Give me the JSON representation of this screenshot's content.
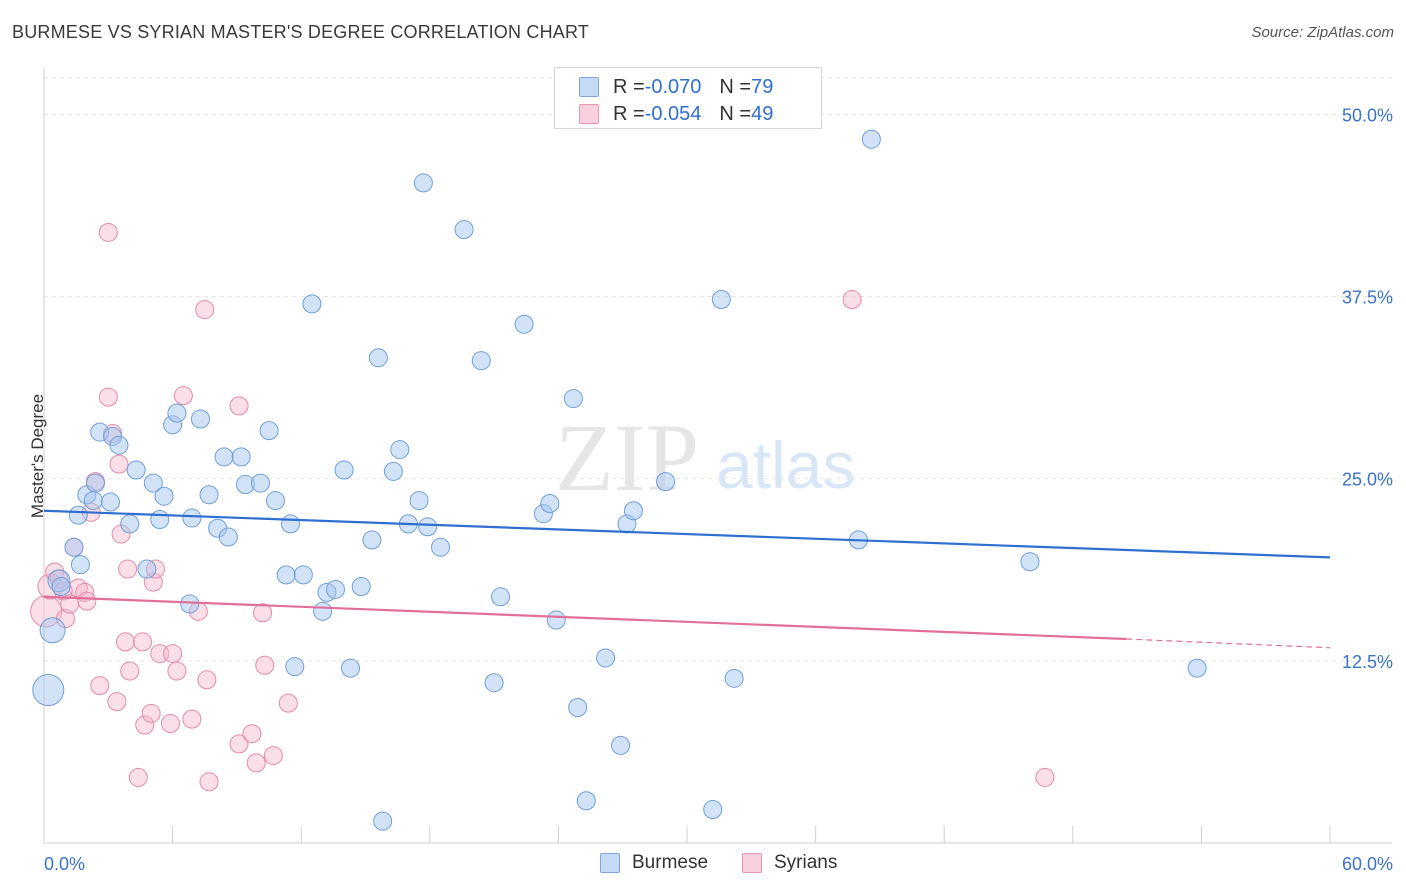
{
  "header": {
    "title": "BURMESE VS SYRIAN MASTER'S DEGREE CORRELATION CHART",
    "source": "Source: ZipAtlas.com"
  },
  "watermark": {
    "zip": "ZIP",
    "atlas": "atlas"
  },
  "legend": {
    "rows": [
      {
        "r_label": "R = ",
        "r_value": "-0.070",
        "n_label": "N = ",
        "n_value": "79",
        "color": "#a8c8f0"
      },
      {
        "r_label": "R = ",
        "r_value": "-0.054",
        "n_label": "N = ",
        "n_value": "49",
        "color": "#f5b8cb"
      }
    ]
  },
  "bottom_legend": {
    "burmese": "Burmese",
    "syrians": "Syrians"
  },
  "colors": {
    "burmese_fill": "#a8c8f0",
    "burmese_stroke": "#6f9fd8",
    "burmese_line": "#2f6fd0",
    "syrians_fill": "#f5b8cb",
    "syrians_stroke": "#e58aa8",
    "syrians_line": "#e0709a",
    "tick_label": "#3b73c8",
    "grid": "#e2e2e2"
  },
  "chart_data": {
    "type": "scatter",
    "title": "BURMESE VS SYRIAN MASTER'S DEGREE CORRELATION CHART",
    "xlabel": "",
    "ylabel": "Master's Degree",
    "xlim": [
      0,
      60
    ],
    "ylim": [
      0,
      52.5
    ],
    "x_tick_labels": [
      "0.0%",
      "60.0%"
    ],
    "y_ticks": [
      12.5,
      25.0,
      37.5,
      50.0
    ],
    "y_tick_labels": [
      "12.5%",
      "25.0%",
      "37.5%",
      "50.0%"
    ],
    "grid": true,
    "series": [
      {
        "name": "Burmese",
        "r": -0.07,
        "n": 79,
        "trend": {
          "x": [
            0,
            60
          ],
          "y": [
            22.8,
            19.6
          ]
        },
        "points": [
          [
            0.2,
            10.5,
            3
          ],
          [
            0.4,
            14.6,
            2
          ],
          [
            0.7,
            18.0,
            1.5
          ],
          [
            0.8,
            17.6,
            1
          ],
          [
            1.4,
            20.3,
            1
          ],
          [
            1.6,
            22.5,
            1
          ],
          [
            1.7,
            19.1,
            1
          ],
          [
            2.0,
            23.9,
            1
          ],
          [
            2.4,
            24.7,
            1
          ],
          [
            2.6,
            28.2,
            1
          ],
          [
            2.3,
            23.5,
            1
          ],
          [
            3.1,
            23.4,
            1
          ],
          [
            3.2,
            27.9,
            1
          ],
          [
            3.5,
            27.3,
            1
          ],
          [
            4.0,
            21.9,
            1
          ],
          [
            4.3,
            25.6,
            1
          ],
          [
            4.8,
            18.8,
            1
          ],
          [
            5.1,
            24.7,
            1
          ],
          [
            5.4,
            22.2,
            1
          ],
          [
            5.6,
            23.8,
            1
          ],
          [
            6.0,
            28.7,
            1
          ],
          [
            6.2,
            29.5,
            1
          ],
          [
            6.8,
            16.4,
            1
          ],
          [
            6.9,
            22.3,
            1
          ],
          [
            7.3,
            29.1,
            1
          ],
          [
            7.7,
            23.9,
            1
          ],
          [
            8.1,
            21.6,
            1
          ],
          [
            8.4,
            26.5,
            1
          ],
          [
            8.6,
            21.0,
            1
          ],
          [
            9.2,
            26.5,
            1
          ],
          [
            9.4,
            24.6,
            1
          ],
          [
            10.1,
            24.7,
            1
          ],
          [
            10.5,
            28.3,
            1
          ],
          [
            10.8,
            23.5,
            1
          ],
          [
            11.3,
            18.4,
            1
          ],
          [
            11.5,
            21.9,
            1
          ],
          [
            11.7,
            12.1,
            1
          ],
          [
            12.1,
            18.4,
            1
          ],
          [
            12.5,
            37.0,
            1
          ],
          [
            13.0,
            15.9,
            1
          ],
          [
            13.2,
            17.2,
            1
          ],
          [
            13.6,
            17.4,
            1
          ],
          [
            14.0,
            25.6,
            1
          ],
          [
            14.3,
            12.0,
            1
          ],
          [
            14.8,
            17.6,
            1
          ],
          [
            15.3,
            20.8,
            1
          ],
          [
            15.6,
            33.3,
            1
          ],
          [
            15.8,
            1.5,
            1
          ],
          [
            16.3,
            25.5,
            1
          ],
          [
            16.6,
            27.0,
            1
          ],
          [
            17.0,
            21.9,
            1
          ],
          [
            17.5,
            23.5,
            1
          ],
          [
            17.7,
            45.3,
            1
          ],
          [
            17.9,
            21.7,
            1
          ],
          [
            18.5,
            20.3,
            1
          ],
          [
            19.6,
            42.1,
            1
          ],
          [
            20.4,
            33.1,
            1
          ],
          [
            21.0,
            11.0,
            1
          ],
          [
            21.3,
            16.9,
            1
          ],
          [
            22.4,
            35.6,
            1
          ],
          [
            23.3,
            22.6,
            1
          ],
          [
            23.6,
            23.3,
            1
          ],
          [
            23.9,
            15.3,
            1
          ],
          [
            24.7,
            30.5,
            1
          ],
          [
            24.9,
            9.3,
            1
          ],
          [
            25.3,
            2.9,
            1
          ],
          [
            26.2,
            12.7,
            1
          ],
          [
            26.9,
            6.7,
            1
          ],
          [
            27.2,
            21.9,
            1
          ],
          [
            27.5,
            22.8,
            1
          ],
          [
            29.0,
            24.8,
            1
          ],
          [
            31.2,
            2.3,
            1
          ],
          [
            31.6,
            37.3,
            1
          ],
          [
            32.2,
            11.3,
            1
          ],
          [
            38.0,
            20.8,
            1
          ],
          [
            38.6,
            48.3,
            1
          ],
          [
            46.0,
            19.3,
            1
          ],
          [
            53.8,
            12.0,
            1
          ]
        ]
      },
      {
        "name": "Syrians",
        "r": -0.054,
        "n": 49,
        "trend": {
          "x": [
            0,
            50.5
          ],
          "y": [
            16.9,
            14.0
          ]
        },
        "trend_dashed": {
          "x": [
            50.5,
            60
          ],
          "y": [
            14.0,
            13.4
          ]
        },
        "points": [
          [
            0.1,
            15.9,
            3
          ],
          [
            0.3,
            17.6,
            2
          ],
          [
            0.5,
            18.6,
            1
          ],
          [
            0.7,
            18.1,
            1
          ],
          [
            0.9,
            17.3,
            1
          ],
          [
            1.0,
            15.4,
            1
          ],
          [
            1.2,
            16.4,
            1
          ],
          [
            1.4,
            20.3,
            1
          ],
          [
            1.6,
            17.5,
            1
          ],
          [
            1.9,
            17.2,
            1
          ],
          [
            2.0,
            16.6,
            1
          ],
          [
            2.2,
            22.7,
            1
          ],
          [
            2.4,
            24.8,
            1
          ],
          [
            2.6,
            10.8,
            1
          ],
          [
            3.0,
            30.6,
            1
          ],
          [
            3.2,
            28.1,
            1
          ],
          [
            3.4,
            9.7,
            1
          ],
          [
            3.5,
            26.0,
            1
          ],
          [
            3.6,
            21.2,
            1
          ],
          [
            3.8,
            13.8,
            1
          ],
          [
            3.9,
            18.8,
            1
          ],
          [
            4.0,
            11.8,
            1
          ],
          [
            4.4,
            4.5,
            1
          ],
          [
            4.6,
            13.8,
            1
          ],
          [
            4.7,
            8.1,
            1
          ],
          [
            5.0,
            8.9,
            1
          ],
          [
            5.1,
            17.9,
            1
          ],
          [
            5.2,
            18.8,
            1
          ],
          [
            5.4,
            13.0,
            1
          ],
          [
            5.9,
            8.2,
            1
          ],
          [
            6.0,
            13.0,
            1
          ],
          [
            6.2,
            11.8,
            1
          ],
          [
            6.5,
            30.7,
            1
          ],
          [
            6.9,
            8.5,
            1
          ],
          [
            7.2,
            15.9,
            1
          ],
          [
            7.5,
            36.6,
            1
          ],
          [
            7.6,
            11.2,
            1
          ],
          [
            7.7,
            4.2,
            1
          ],
          [
            9.1,
            30.0,
            1
          ],
          [
            9.1,
            6.8,
            1
          ],
          [
            9.7,
            7.5,
            1
          ],
          [
            9.9,
            5.5,
            1
          ],
          [
            10.2,
            15.8,
            1
          ],
          [
            10.3,
            12.2,
            1
          ],
          [
            10.7,
            6.0,
            1
          ],
          [
            11.4,
            9.6,
            1
          ],
          [
            3.0,
            41.9,
            1
          ],
          [
            37.7,
            37.3,
            1
          ],
          [
            46.7,
            4.5,
            1
          ]
        ]
      }
    ]
  }
}
